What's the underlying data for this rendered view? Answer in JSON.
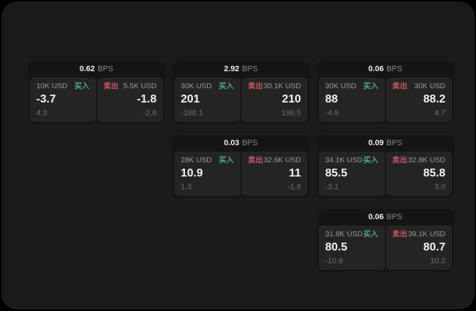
{
  "colors": {
    "buy_green": "#55a878",
    "sell_red": "#cf5462",
    "window_bg": "#1b1b1b",
    "card_bg": "#151515",
    "panel_bg": "#242424"
  },
  "cards": [
    {
      "spread": "0.62",
      "unit": "BPS",
      "buy": {
        "amount": "10K USD",
        "side_label": "买入",
        "price": "-3.7",
        "sub_value": "4.3"
      },
      "sell": {
        "side_label": "卖出",
        "amount": "5.5K USD",
        "price": "-1.8",
        "sub_value": "-2.6"
      }
    },
    {
      "spread": "2.92",
      "unit": "BPS",
      "buy": {
        "amount": "30K USD",
        "side_label": "买入",
        "price": "201",
        "sub_value": "-188.1"
      },
      "sell": {
        "side_label": "卖出",
        "amount": "30.1K USD",
        "price": "210",
        "sub_value": "196.5"
      }
    },
    {
      "spread": "0.06",
      "unit": "BPS",
      "buy": {
        "amount": "30K USD",
        "side_label": "买入",
        "price": "88",
        "sub_value": "-4.9"
      },
      "sell": {
        "side_label": "卖出",
        "amount": "30K USD",
        "price": "88.2",
        "sub_value": "4.7"
      }
    },
    {
      "spread": "0.03",
      "unit": "BPS",
      "buy": {
        "amount": "28K USD",
        "side_label": "买入",
        "price": "10.9",
        "sub_value": "1.3"
      },
      "sell": {
        "side_label": "卖出",
        "amount": "32.6K USD",
        "price": "11",
        "sub_value": "-1.8"
      }
    },
    {
      "spread": "0.09",
      "unit": "BPS",
      "buy": {
        "amount": "34.1K USD",
        "side_label": "买入",
        "price": "85.5",
        "sub_value": "-3.1"
      },
      "sell": {
        "side_label": "卖出",
        "amount": "32.8K USD",
        "price": "85.8",
        "sub_value": "3.0"
      }
    },
    {
      "spread": "0.06",
      "unit": "BPS",
      "buy": {
        "amount": "31.8K USD",
        "side_label": "买入",
        "price": "80.5",
        "sub_value": "-10.8"
      },
      "sell": {
        "side_label": "卖出",
        "amount": "39.1K USD",
        "price": "80.7",
        "sub_value": "10.2"
      }
    }
  ]
}
